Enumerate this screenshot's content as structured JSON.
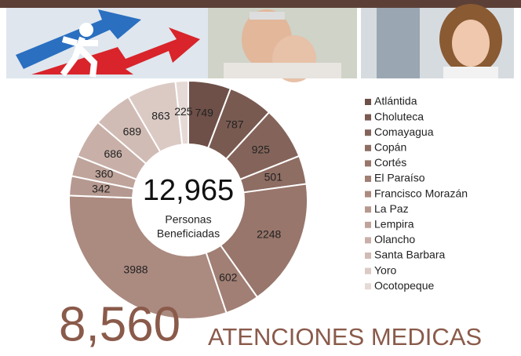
{
  "chart_data": {
    "type": "donut",
    "categories": [
      "Atlántida",
      "Choluteca",
      "Comayagua",
      "Copán",
      "Cortés",
      "El Paraíso",
      "Francisco Morazán",
      "La Paz",
      "Lempira",
      "Olancho",
      "Santa Barbara",
      "Yoro",
      "Ocotopeque"
    ],
    "values": [
      749,
      787,
      925,
      501,
      2248,
      602,
      3988,
      342,
      360,
      686,
      689,
      863,
      225
    ],
    "colors": [
      "#6e5048",
      "#795a51",
      "#84645a",
      "#8e6d63",
      "#98766b",
      "#a17f74",
      "#ab8a80",
      "#b59990",
      "#bfa49b",
      "#c8b0a8",
      "#d1bcb5",
      "#dbcac4",
      "#e6dad6"
    ],
    "center": {
      "value": "12,965",
      "label": [
        "Personas",
        "Beneficiadas"
      ]
    },
    "headline": {
      "number": "8,560",
      "text": "ATENCIONES MEDICAS"
    }
  }
}
